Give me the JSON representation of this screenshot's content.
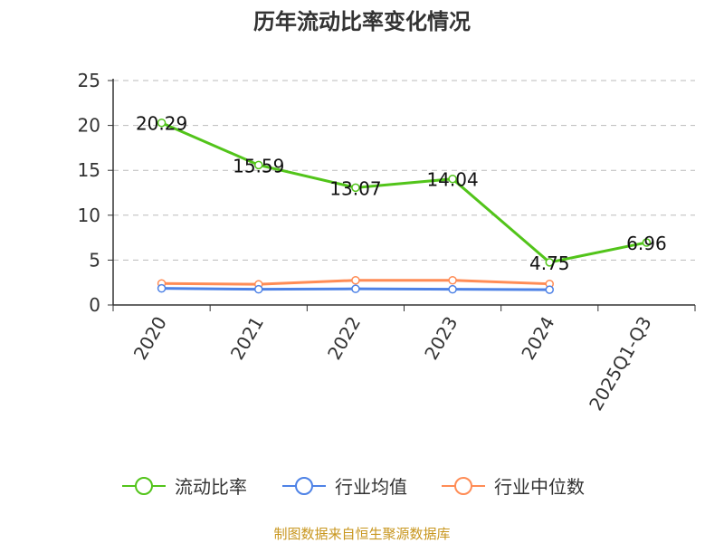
{
  "chart_data": {
    "type": "line",
    "title": "历年流动比率变化情况",
    "categories": [
      "2020",
      "2021",
      "2022",
      "2023",
      "2024",
      "2025Q1-Q3"
    ],
    "ylim": [
      0,
      25
    ],
    "yticks": [
      "0",
      "5",
      "10",
      "15",
      "20",
      "25"
    ],
    "grid": true,
    "legend_position": "bottom",
    "series": [
      {
        "name": "流动比率",
        "color": "#52c41a",
        "values": [
          20.29,
          15.59,
          13.07,
          14.04,
          4.75,
          6.96
        ],
        "labels": [
          "20.29",
          "15.59",
          "13.07",
          "14.04",
          "4.75",
          "6.96"
        ]
      },
      {
        "name": "行业均值",
        "color": "#4e82e6",
        "values": [
          1.85,
          1.75,
          1.8,
          1.75,
          1.7,
          null
        ]
      },
      {
        "name": "行业中位数",
        "color": "#ff8c55",
        "values": [
          2.4,
          2.3,
          2.75,
          2.75,
          2.35,
          null
        ]
      }
    ]
  },
  "footer": "制图数据来自恒生聚源数据库"
}
